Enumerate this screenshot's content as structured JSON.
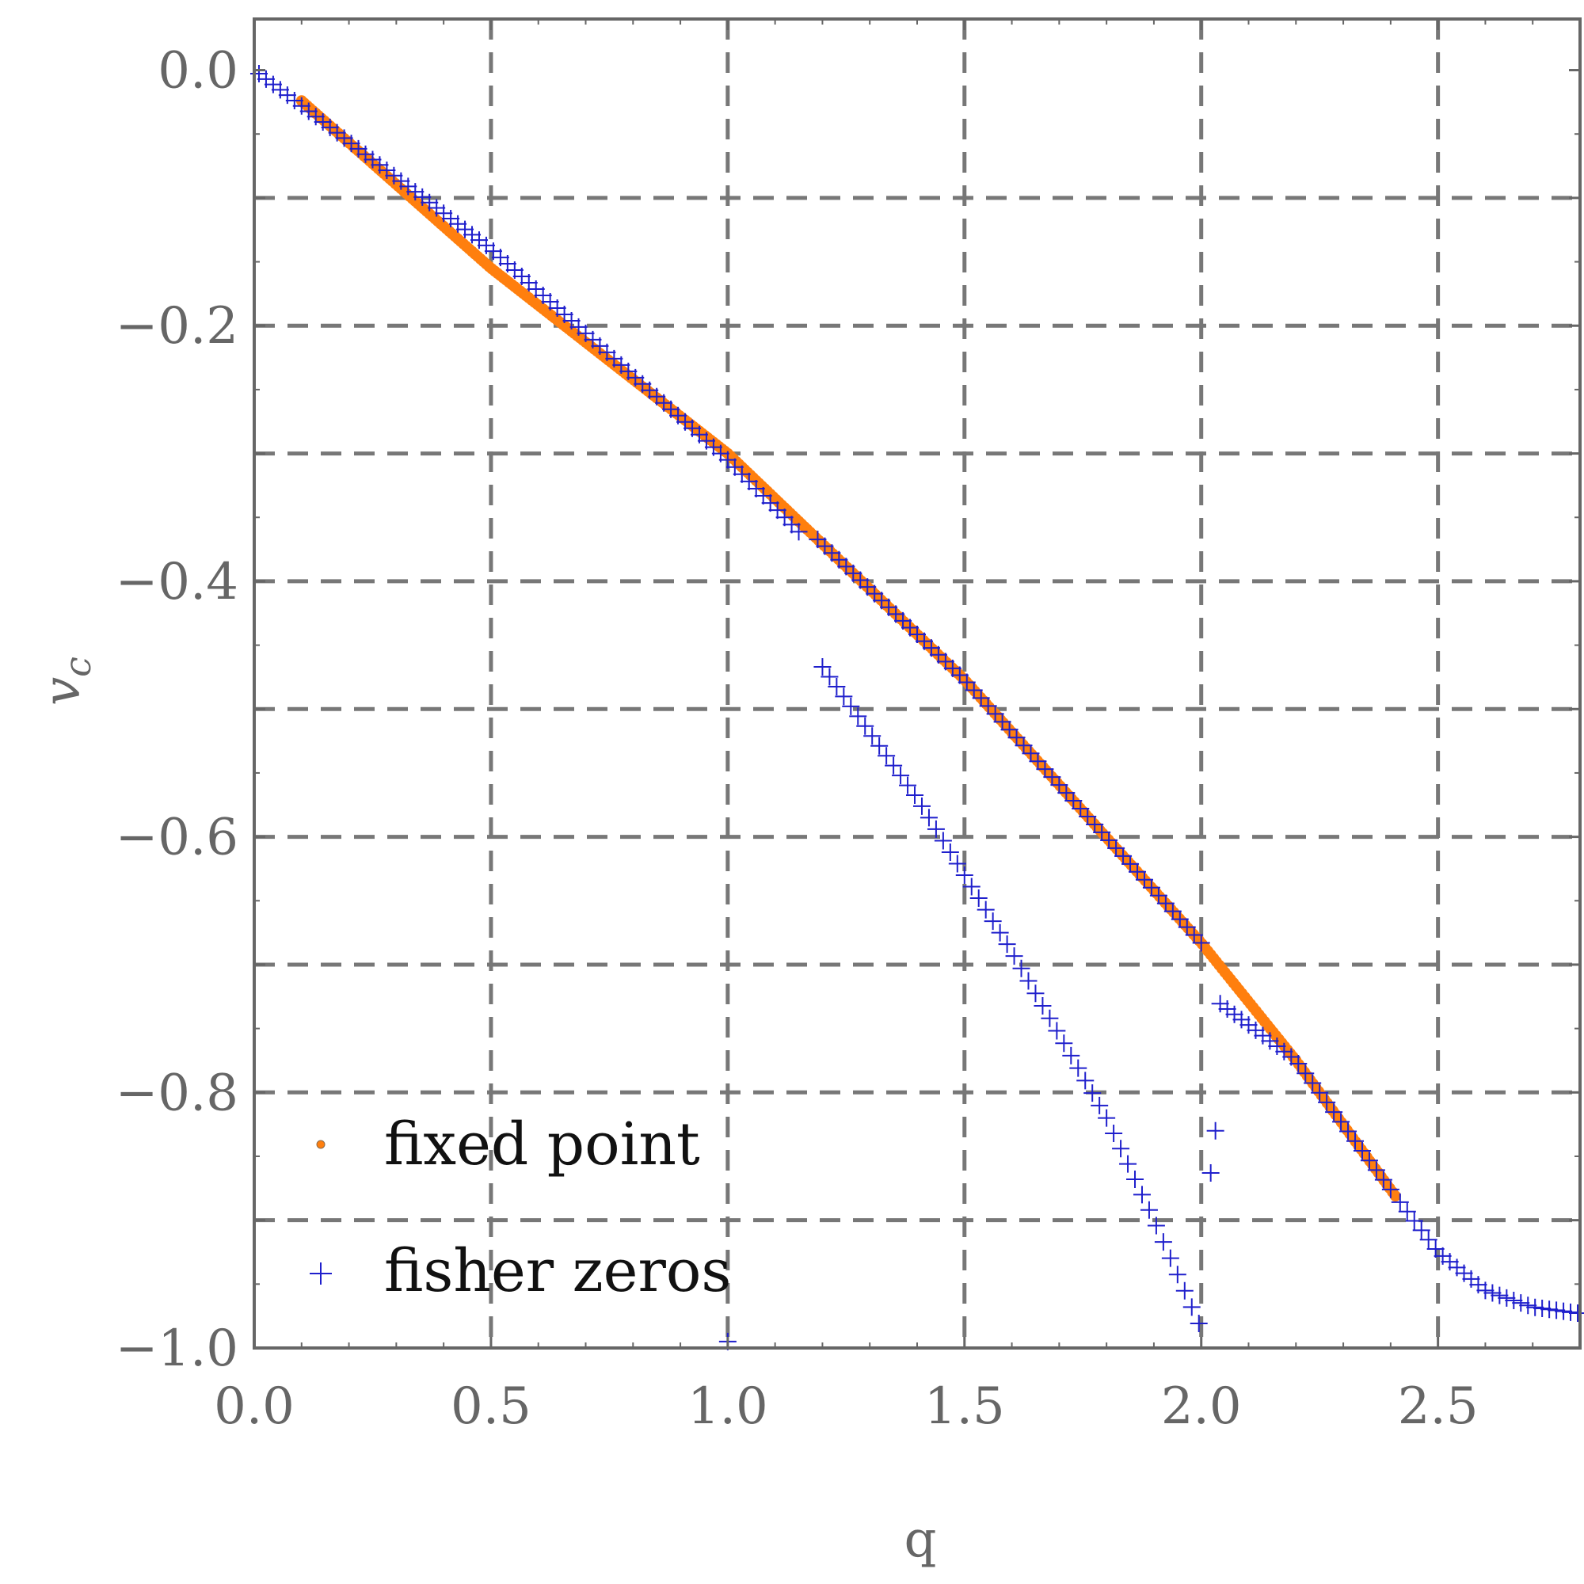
{
  "colors": {
    "fixed_point": "#ff7f0e",
    "fisher_zeros": "#1f1fcc",
    "grid": "#777777",
    "axis": "#666666"
  },
  "chart_data": {
    "type": "scatter",
    "title": "",
    "xlabel": "q",
    "ylabel": "v_c",
    "xlim": [
      0.0,
      2.8
    ],
    "ylim": [
      -1.0,
      0.04
    ],
    "grid": true,
    "grid_style": "dashed",
    "legend_position": "bottom-left",
    "x_ticks": [
      0.0,
      0.5,
      1.0,
      1.5,
      2.0,
      2.5
    ],
    "x_tick_labels": [
      "0.0",
      "0.5",
      "1.0",
      "1.5",
      "2.0",
      "2.5"
    ],
    "y_ticks": [
      0.0,
      -0.2,
      -0.4,
      -0.6,
      -0.8,
      -1.0
    ],
    "y_tick_labels": [
      "0.0",
      "−0.2",
      "−0.4",
      "−0.6",
      "−0.8",
      "−1.0"
    ],
    "y_grid_values": [
      -0.1,
      -0.2,
      -0.3,
      -0.4,
      -0.5,
      -0.6,
      -0.7,
      -0.8,
      -0.9
    ],
    "series": [
      {
        "name": "fixed point",
        "marker": "dot",
        "segments": [
          {
            "x_start": 0.1,
            "x_end": 2.41,
            "step": 0.006,
            "curve": [
              [
                0.1,
                -0.024
              ],
              [
                0.5,
                -0.155
              ],
              [
                1.0,
                -0.3
              ],
              [
                1.5,
                -0.477
              ],
              [
                2.0,
                -0.683
              ],
              [
                2.2,
                -0.775
              ],
              [
                2.41,
                -0.881
              ]
            ]
          }
        ]
      },
      {
        "name": "fisher zeros",
        "marker": "plus",
        "segments": [
          {
            "x_start": 0.01,
            "x_end": 1.16,
            "step": 0.015,
            "curve": [
              [
                0.0,
                0.0
              ],
              [
                0.5,
                -0.14
              ],
              [
                1.0,
                -0.305
              ],
              [
                1.16,
                -0.365
              ]
            ]
          },
          {
            "x_start": 1.19,
            "x_end": 2.0,
            "step": 0.015,
            "curve": [
              [
                1.0,
                -0.3
              ],
              [
                1.5,
                -0.477
              ],
              [
                2.0,
                -0.683
              ]
            ]
          },
          {
            "x_start": 2.04,
            "x_end": 2.41,
            "step": 0.015,
            "curve": [
              [
                2.02,
                -0.725
              ],
              [
                2.2,
                -0.775
              ],
              [
                2.41,
                -0.881
              ]
            ]
          },
          {
            "x_start": 2.42,
            "x_end": 2.8,
            "step": 0.015,
            "curve": [
              [
                2.41,
                -0.881
              ],
              [
                2.5,
                -0.925
              ],
              [
                2.6,
                -0.955
              ],
              [
                2.7,
                -0.968
              ],
              [
                2.8,
                -0.973
              ]
            ]
          },
          {
            "x_start": 1.2,
            "x_end": 2.0,
            "step": 0.015,
            "curve": [
              [
                1.2,
                -0.467
              ],
              [
                1.4,
                -0.57
              ],
              [
                1.6,
                -0.69
              ],
              [
                1.8,
                -0.82
              ],
              [
                1.9,
                -0.9
              ],
              [
                2.0,
                -0.985
              ]
            ]
          }
        ],
        "points": [
          [
            2.03,
            -0.83
          ],
          [
            2.02,
            -0.863
          ],
          [
            1.0,
            -0.995
          ]
        ]
      }
    ]
  }
}
